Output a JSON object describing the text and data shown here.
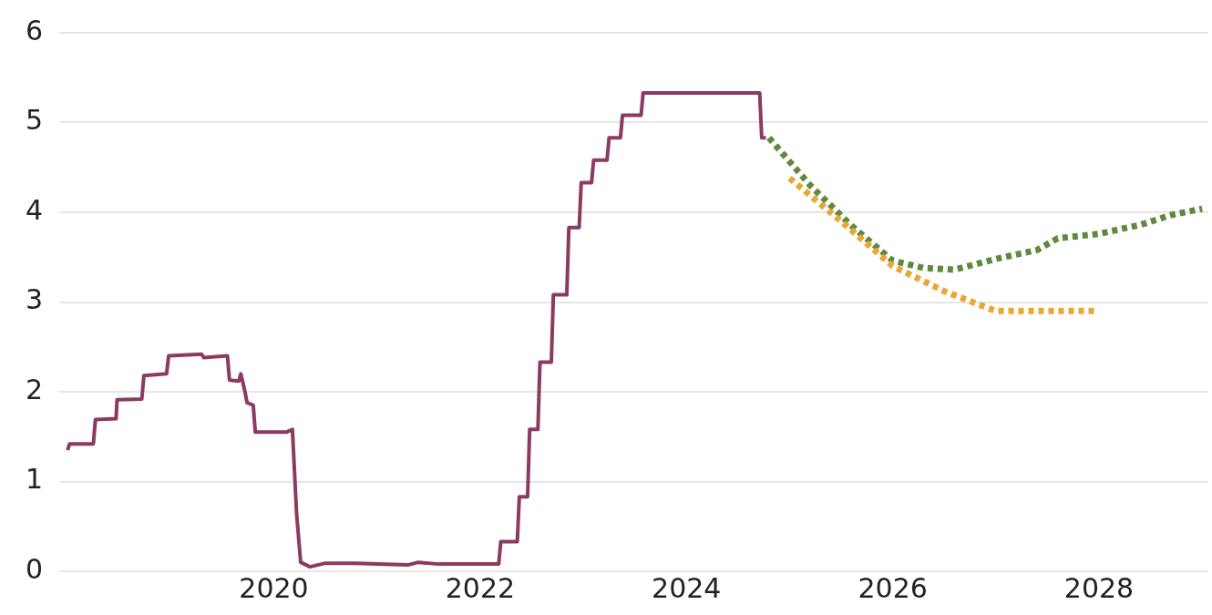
{
  "chart_data": {
    "type": "line",
    "xlim": [
      2017.92,
      2029.06
    ],
    "xticks": [
      2020,
      2022,
      2024,
      2026,
      2028
    ],
    "ylim": [
      0,
      6
    ],
    "yticks": [
      0,
      1,
      2,
      3,
      4,
      5,
      6
    ],
    "grid": "y",
    "marker": "none",
    "series": [
      {
        "color": "#8b3a62",
        "line_style": "solid",
        "x": [
          2018.0,
          2018.02,
          2018.03,
          2018.07,
          2018.1,
          2018.25,
          2018.27,
          2018.47,
          2018.48,
          2018.72,
          2018.74,
          2018.96,
          2018.98,
          2019.3,
          2019.32,
          2019.55,
          2019.57,
          2019.66,
          2019.68,
          2019.72,
          2019.74,
          2019.8,
          2019.82,
          2020.12,
          2020.18,
          2020.22,
          2020.26,
          2020.35,
          2020.5,
          2020.8,
          2021.0,
          2021.3,
          2021.4,
          2021.6,
          2022.18,
          2022.2,
          2022.36,
          2022.38,
          2022.46,
          2022.48,
          2022.56,
          2022.58,
          2022.69,
          2022.71,
          2022.84,
          2022.86,
          2022.96,
          2022.98,
          2023.08,
          2023.1,
          2023.23,
          2023.25,
          2023.36,
          2023.38,
          2023.56,
          2023.58,
          2024.71,
          2024.73,
          2024.77
        ],
        "values": [
          1.35,
          1.42,
          1.42,
          1.42,
          1.42,
          1.42,
          1.69,
          1.7,
          1.91,
          1.92,
          2.18,
          2.2,
          2.4,
          2.42,
          2.38,
          2.4,
          2.13,
          2.12,
          2.2,
          2.0,
          1.88,
          1.85,
          1.55,
          1.55,
          1.58,
          0.65,
          0.1,
          0.05,
          0.09,
          0.09,
          0.08,
          0.07,
          0.1,
          0.08,
          0.08,
          0.33,
          0.33,
          0.83,
          0.83,
          1.58,
          1.58,
          2.33,
          2.33,
          3.08,
          3.08,
          3.83,
          3.83,
          4.33,
          4.33,
          4.58,
          4.58,
          4.83,
          4.83,
          5.08,
          5.08,
          5.33,
          5.33,
          4.83,
          4.83
        ]
      },
      {
        "color": "#e8a838",
        "line_style": "dotted",
        "x": [
          2025.0,
          2025.5,
          2026.0,
          2026.5,
          2027.0,
          2027.5,
          2027.97
        ],
        "values": [
          4.38,
          3.9,
          3.4,
          3.12,
          2.9,
          2.9,
          2.9
        ]
      },
      {
        "color": "#5f8a3e",
        "line_style": "dotted",
        "x": [
          2024.8,
          2025.2,
          2025.6,
          2026.0,
          2026.3,
          2026.6,
          2027.0,
          2027.4,
          2027.6,
          2028.0,
          2028.4,
          2028.7,
          2029.0
        ],
        "values": [
          4.83,
          4.3,
          3.85,
          3.46,
          3.38,
          3.36,
          3.48,
          3.58,
          3.71,
          3.76,
          3.86,
          3.97,
          4.04
        ]
      }
    ]
  }
}
